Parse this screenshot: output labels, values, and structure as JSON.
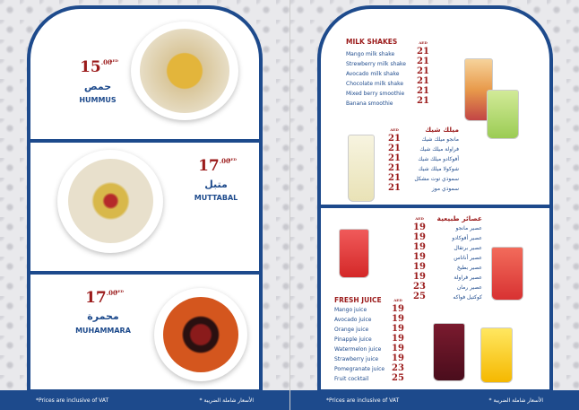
{
  "left_page": {
    "dishes": [
      {
        "price": "15",
        "decimals": ".00",
        "currency": "AED",
        "name_ar": "حمص",
        "name_en": "HUMMUS"
      },
      {
        "price": "17",
        "decimals": ".00",
        "currency": "AED",
        "name_ar": "متبل",
        "name_en": "MUTTABAL"
      },
      {
        "price": "17",
        "decimals": ".00",
        "currency": "AED",
        "name_ar": "محمرة",
        "name_en": "MUHAMMARA"
      }
    ],
    "footer_en": "*Prices are inclusive of VAT",
    "footer_ar": "* الأسعار شاملة الضريبة"
  },
  "right_page": {
    "milk_shakes": {
      "title": "MILK SHAKES",
      "currency": "AED",
      "items": [
        {
          "name": "Mango milk shake",
          "price": "21"
        },
        {
          "name": "Strewberry milk shake",
          "price": "21"
        },
        {
          "name": "Avocado milk shake",
          "price": "21"
        },
        {
          "name": "Chocolate milk shake",
          "price": "21"
        },
        {
          "name": "Mixed berry smoothie",
          "price": "21"
        },
        {
          "name": "Banana smoothie",
          "price": "21"
        }
      ]
    },
    "milk_shakes_ar": {
      "title": "ميلك شيك",
      "currency": "AED",
      "items": [
        {
          "name": "مانجو ميلك شيك",
          "price": "21"
        },
        {
          "name": "فراولة ميلك شيك",
          "price": "21"
        },
        {
          "name": "أفوكادو ميلك شيك",
          "price": "21"
        },
        {
          "name": "شوكولا ميلك شيك",
          "price": "21"
        },
        {
          "name": "سموذي توت مشكل",
          "price": "21"
        },
        {
          "name": "سموذي موز",
          "price": "21"
        }
      ]
    },
    "juices_ar": {
      "title": "عصائر طبيعية",
      "currency": "AED",
      "items": [
        {
          "name": "عصير مانجو",
          "price": "19"
        },
        {
          "name": "عصير أفوكادو",
          "price": "19"
        },
        {
          "name": "عصير برتقال",
          "price": "19"
        },
        {
          "name": "عصير أناناس",
          "price": "19"
        },
        {
          "name": "عصير بطيخ",
          "price": "19"
        },
        {
          "name": "عصير فراولة",
          "price": "19"
        },
        {
          "name": "عصير رمان",
          "price": "23"
        },
        {
          "name": "كوكتيل فواكه",
          "price": "25"
        }
      ]
    },
    "fresh_juice": {
      "title": "FRESH JUICE",
      "currency": "AED",
      "items": [
        {
          "name": "Mango juice",
          "price": "19"
        },
        {
          "name": "Avocado juice",
          "price": "19"
        },
        {
          "name": "Orange juice",
          "price": "19"
        },
        {
          "name": "Pinapple juice",
          "price": "19"
        },
        {
          "name": "Watermelon juice",
          "price": "19"
        },
        {
          "name": "Strawberry juice",
          "price": "19"
        },
        {
          "name": "Pomegranate juice",
          "price": "23"
        },
        {
          "name": "Fruit cocktail",
          "price": "25"
        }
      ]
    },
    "footer_en": "*Prices are inclusive of VAT",
    "footer_ar": "* الأسعار شاملة الضريبة"
  },
  "colors": {
    "brand_blue": "#1d4a8c",
    "price_red": "#9b1b1b"
  }
}
